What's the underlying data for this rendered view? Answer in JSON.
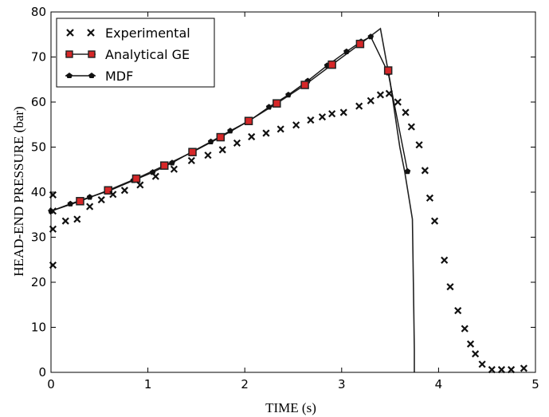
{
  "chart_data": {
    "type": "line",
    "xlabel": "TIME (s)",
    "ylabel": "HEAD-END PRESSURE (bar)",
    "xlim": [
      0,
      5
    ],
    "ylim": [
      0,
      80
    ],
    "xticks": [
      "0",
      "1",
      "2",
      "3",
      "4",
      "5"
    ],
    "yticks": [
      "0",
      "10",
      "20",
      "30",
      "40",
      "50",
      "60",
      "70",
      "80"
    ],
    "grid": false,
    "legend_position": "top-left",
    "legend": [
      "Experimental",
      "Analytical GE",
      "MDF"
    ],
    "series": [
      {
        "name": "Experimental",
        "style": "x-markers",
        "color": "#111111",
        "points": [
          [
            0.02,
            23.8
          ],
          [
            0.02,
            31.8
          ],
          [
            0.02,
            35.8
          ],
          [
            0.02,
            39.4
          ],
          [
            0.15,
            33.6
          ],
          [
            0.27,
            34.0
          ],
          [
            0.4,
            36.8
          ],
          [
            0.52,
            38.3
          ],
          [
            0.64,
            39.5
          ],
          [
            0.76,
            40.4
          ],
          [
            0.92,
            41.6
          ],
          [
            1.08,
            43.5
          ],
          [
            1.27,
            45.1
          ],
          [
            1.45,
            47.0
          ],
          [
            1.62,
            48.2
          ],
          [
            1.77,
            49.4
          ],
          [
            1.92,
            50.9
          ],
          [
            2.07,
            52.3
          ],
          [
            2.22,
            53.1
          ],
          [
            2.37,
            54.0
          ],
          [
            2.53,
            54.9
          ],
          [
            2.68,
            56.0
          ],
          [
            2.8,
            56.7
          ],
          [
            2.9,
            57.4
          ],
          [
            3.02,
            57.7
          ],
          [
            3.18,
            59.1
          ],
          [
            3.3,
            60.3
          ],
          [
            3.4,
            61.6
          ],
          [
            3.49,
            61.9
          ],
          [
            3.58,
            60.0
          ],
          [
            3.66,
            57.7
          ],
          [
            3.72,
            54.5
          ],
          [
            3.8,
            50.5
          ],
          [
            3.86,
            44.8
          ],
          [
            3.91,
            38.7
          ],
          [
            3.96,
            33.6
          ],
          [
            4.06,
            24.9
          ],
          [
            4.12,
            19.0
          ],
          [
            4.2,
            13.7
          ],
          [
            4.27,
            9.7
          ],
          [
            4.33,
            6.3
          ],
          [
            4.38,
            4.1
          ],
          [
            4.45,
            1.8
          ],
          [
            4.55,
            0.6
          ],
          [
            4.65,
            0.6
          ],
          [
            4.75,
            0.6
          ],
          [
            4.88,
            0.9
          ]
        ]
      },
      {
        "name": "Analytical GE",
        "style": "line-square-markers",
        "color": "#222222",
        "marker_color": "#d62728",
        "x": [
          0.0,
          0.3,
          0.59,
          0.88,
          1.17,
          1.46,
          1.75,
          2.04,
          2.33,
          2.62,
          2.9,
          3.19,
          3.4,
          3.5,
          3.6,
          3.65,
          3.7,
          3.73,
          3.74,
          3.75,
          3.75
        ],
        "y": [
          35.8,
          38.0,
          40.4,
          43.0,
          45.9,
          48.9,
          52.2,
          55.8,
          59.7,
          63.8,
          68.3,
          72.9,
          76.3,
          64.5,
          50.0,
          44.6,
          38.0,
          34.0,
          20.0,
          5.0,
          0.0
        ],
        "marker_x": [
          0.3,
          0.59,
          0.88,
          1.17,
          1.46,
          1.75,
          2.04,
          2.33,
          2.62,
          2.9,
          3.19,
          3.48
        ],
        "marker_y": [
          38.0,
          40.4,
          43.0,
          45.9,
          48.9,
          52.2,
          55.8,
          59.7,
          63.8,
          68.3,
          72.9,
          67.0
        ]
      },
      {
        "name": "MDF",
        "style": "pentagon-markers",
        "color": "#111111",
        "x": [
          0.0,
          0.2,
          0.4,
          0.6,
          0.85,
          1.05,
          1.25,
          1.45,
          1.65,
          1.85,
          2.05,
          2.25,
          2.45,
          2.65,
          2.85,
          3.05,
          3.2,
          3.3,
          3.48,
          3.68
        ],
        "y": [
          35.8,
          37.4,
          38.9,
          40.3,
          42.6,
          44.4,
          46.5,
          48.9,
          51.2,
          53.6,
          55.9,
          58.9,
          61.6,
          64.7,
          68.1,
          71.2,
          73.4,
          74.5,
          66.5,
          44.6
        ]
      }
    ]
  }
}
